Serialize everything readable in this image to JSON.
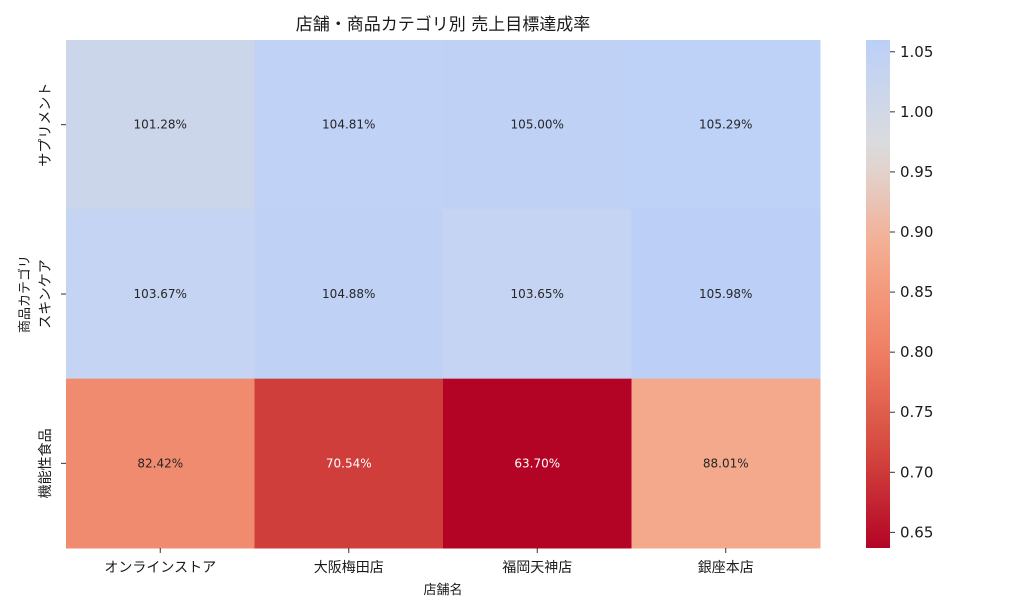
{
  "chart_data": {
    "type": "heatmap",
    "title": "店舗・商品カテゴリ別 売上目標達成率",
    "xlabel": "店舗名",
    "ylabel": "商品カテゴリ",
    "x_categories": [
      "オンラインストア",
      "大阪梅田店",
      "福岡天神店",
      "銀座本店"
    ],
    "y_categories": [
      "サプリメント",
      "スキンケア",
      "機能性食品"
    ],
    "values": [
      [
        1.0128,
        1.0481,
        1.05,
        1.0529
      ],
      [
        1.0367,
        1.0488,
        1.0365,
        1.0598
      ],
      [
        0.8242,
        0.7054,
        0.637,
        0.8801
      ]
    ],
    "cell_labels": [
      [
        "101.28%",
        "104.81%",
        "105.00%",
        "105.29%"
      ],
      [
        "103.67%",
        "104.88%",
        "103.65%",
        "105.98%"
      ],
      [
        "82.42%",
        "70.54%",
        "63.70%",
        "88.01%"
      ]
    ],
    "colormap": "coolwarm_r",
    "vmin": 0.637,
    "vmax": 1.0598,
    "colorbar_ticks": [
      "0.65",
      "0.70",
      "0.75",
      "0.80",
      "0.85",
      "0.90",
      "0.95",
      "1.00",
      "1.05"
    ],
    "grid": false,
    "legend": "colorbar-right"
  }
}
